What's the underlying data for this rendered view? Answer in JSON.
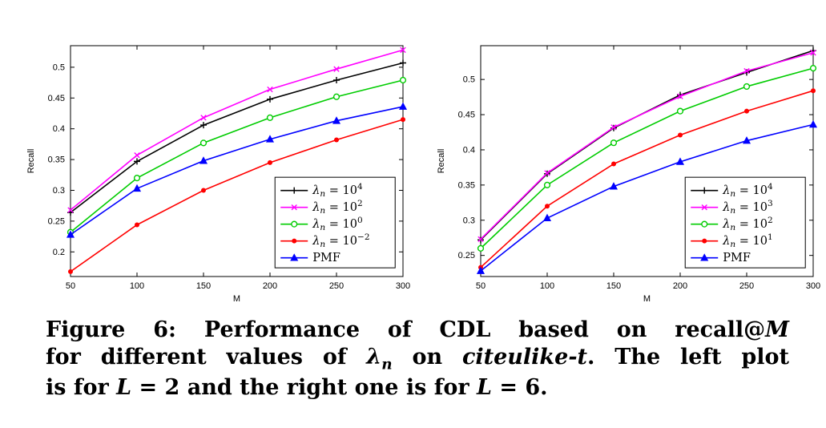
{
  "caption": {
    "lines": [
      [
        {
          "t": "Figure 6: Performance of CDL based on recall@"
        },
        {
          "t": "M",
          "s": "i"
        }
      ],
      [
        {
          "t": "for different values of "
        },
        {
          "t": "λ",
          "s": "i"
        },
        {
          "t": "n",
          "s": "isub"
        },
        {
          "t": " on "
        },
        {
          "t": "citeulike-t",
          "s": "i"
        },
        {
          "t": ". The left plot"
        }
      ],
      [
        {
          "t": "is for "
        },
        {
          "t": "L",
          "s": "i"
        },
        {
          "t": " = 2 and the right one is for "
        },
        {
          "t": "L",
          "s": "i"
        },
        {
          "t": " = 6."
        }
      ]
    ]
  },
  "chart_data": [
    {
      "type": "line",
      "title": "",
      "xlabel": "M",
      "ylabel": "Recall",
      "x": [
        50,
        100,
        150,
        200,
        250,
        300
      ],
      "xlim": [
        50,
        300
      ],
      "ylim": [
        0.16,
        0.535
      ],
      "xticks": [
        50,
        100,
        150,
        200,
        250,
        300
      ],
      "yticks": [
        0.2,
        0.25,
        0.3,
        0.35,
        0.4,
        0.45,
        0.5
      ],
      "grid": false,
      "legend_position": "lower-right",
      "legend_xy": [
        0.615,
        0.57
      ],
      "series": [
        {
          "name": "lambda_n=10^4",
          "label": {
            "pre": "λ",
            "sub": "n",
            "mid": " = 10",
            "sup": "4",
            "it": true
          },
          "color": "#000000",
          "marker": "plus",
          "values": [
            0.264,
            0.347,
            0.406,
            0.448,
            0.479,
            0.507
          ]
        },
        {
          "name": "lambda_n=10^2",
          "label": {
            "pre": "λ",
            "sub": "n",
            "mid": " = 10",
            "sup": "2",
            "it": true
          },
          "color": "#ff00ff",
          "marker": "x",
          "values": [
            0.268,
            0.357,
            0.418,
            0.464,
            0.497,
            0.528
          ]
        },
        {
          "name": "lambda_n=10^0",
          "label": {
            "pre": "λ",
            "sub": "n",
            "mid": " = 10",
            "sup": "0",
            "it": true
          },
          "color": "#00cc00",
          "marker": "circle",
          "values": [
            0.232,
            0.32,
            0.377,
            0.418,
            0.452,
            0.479
          ]
        },
        {
          "name": "lambda_n=10^-2",
          "label": {
            "pre": "λ",
            "sub": "n",
            "mid": " = 10",
            "sup": "−2",
            "it": true
          },
          "color": "#ff0000",
          "marker": "dot",
          "values": [
            0.168,
            0.244,
            0.3,
            0.345,
            0.382,
            0.415
          ]
        },
        {
          "name": "PMF",
          "label": {
            "pre": "PMF",
            "it": false
          },
          "color": "#0000ff",
          "marker": "triangle",
          "values": [
            0.228,
            0.303,
            0.348,
            0.383,
            0.413,
            0.436
          ]
        }
      ]
    },
    {
      "type": "line",
      "title": "",
      "xlabel": "M",
      "ylabel": "Recall",
      "x": [
        50,
        100,
        150,
        200,
        250,
        300
      ],
      "xlim": [
        50,
        300
      ],
      "ylim": [
        0.22,
        0.548
      ],
      "xticks": [
        50,
        100,
        150,
        200,
        250,
        300
      ],
      "yticks": [
        0.25,
        0.3,
        0.35,
        0.4,
        0.45,
        0.5
      ],
      "grid": false,
      "legend_position": "lower-right",
      "legend_xy": [
        0.615,
        0.57
      ],
      "series": [
        {
          "name": "lambda_n=10^4",
          "label": {
            "pre": "λ",
            "sub": "n",
            "mid": " = 10",
            "sup": "4",
            "it": true
          },
          "color": "#000000",
          "marker": "plus",
          "values": [
            0.272,
            0.366,
            0.431,
            0.478,
            0.51,
            0.541
          ]
        },
        {
          "name": "lambda_n=10^3",
          "label": {
            "pre": "λ",
            "sub": "n",
            "mid": " = 10",
            "sup": "3",
            "it": true
          },
          "color": "#ff00ff",
          "marker": "x",
          "values": [
            0.273,
            0.367,
            0.432,
            0.476,
            0.512,
            0.538
          ]
        },
        {
          "name": "lambda_n=10^2",
          "label": {
            "pre": "λ",
            "sub": "n",
            "mid": " = 10",
            "sup": "2",
            "it": true
          },
          "color": "#00cc00",
          "marker": "circle",
          "values": [
            0.26,
            0.35,
            0.41,
            0.455,
            0.49,
            0.516
          ]
        },
        {
          "name": "lambda_n=10^1",
          "label": {
            "pre": "λ",
            "sub": "n",
            "mid": " = 10",
            "sup": "1",
            "it": true
          },
          "color": "#ff0000",
          "marker": "dot",
          "values": [
            0.233,
            0.32,
            0.38,
            0.421,
            0.455,
            0.484
          ]
        },
        {
          "name": "PMF",
          "label": {
            "pre": "PMF",
            "it": false
          },
          "color": "#0000ff",
          "marker": "triangle",
          "values": [
            0.228,
            0.303,
            0.348,
            0.383,
            0.413,
            0.436
          ]
        }
      ]
    }
  ]
}
